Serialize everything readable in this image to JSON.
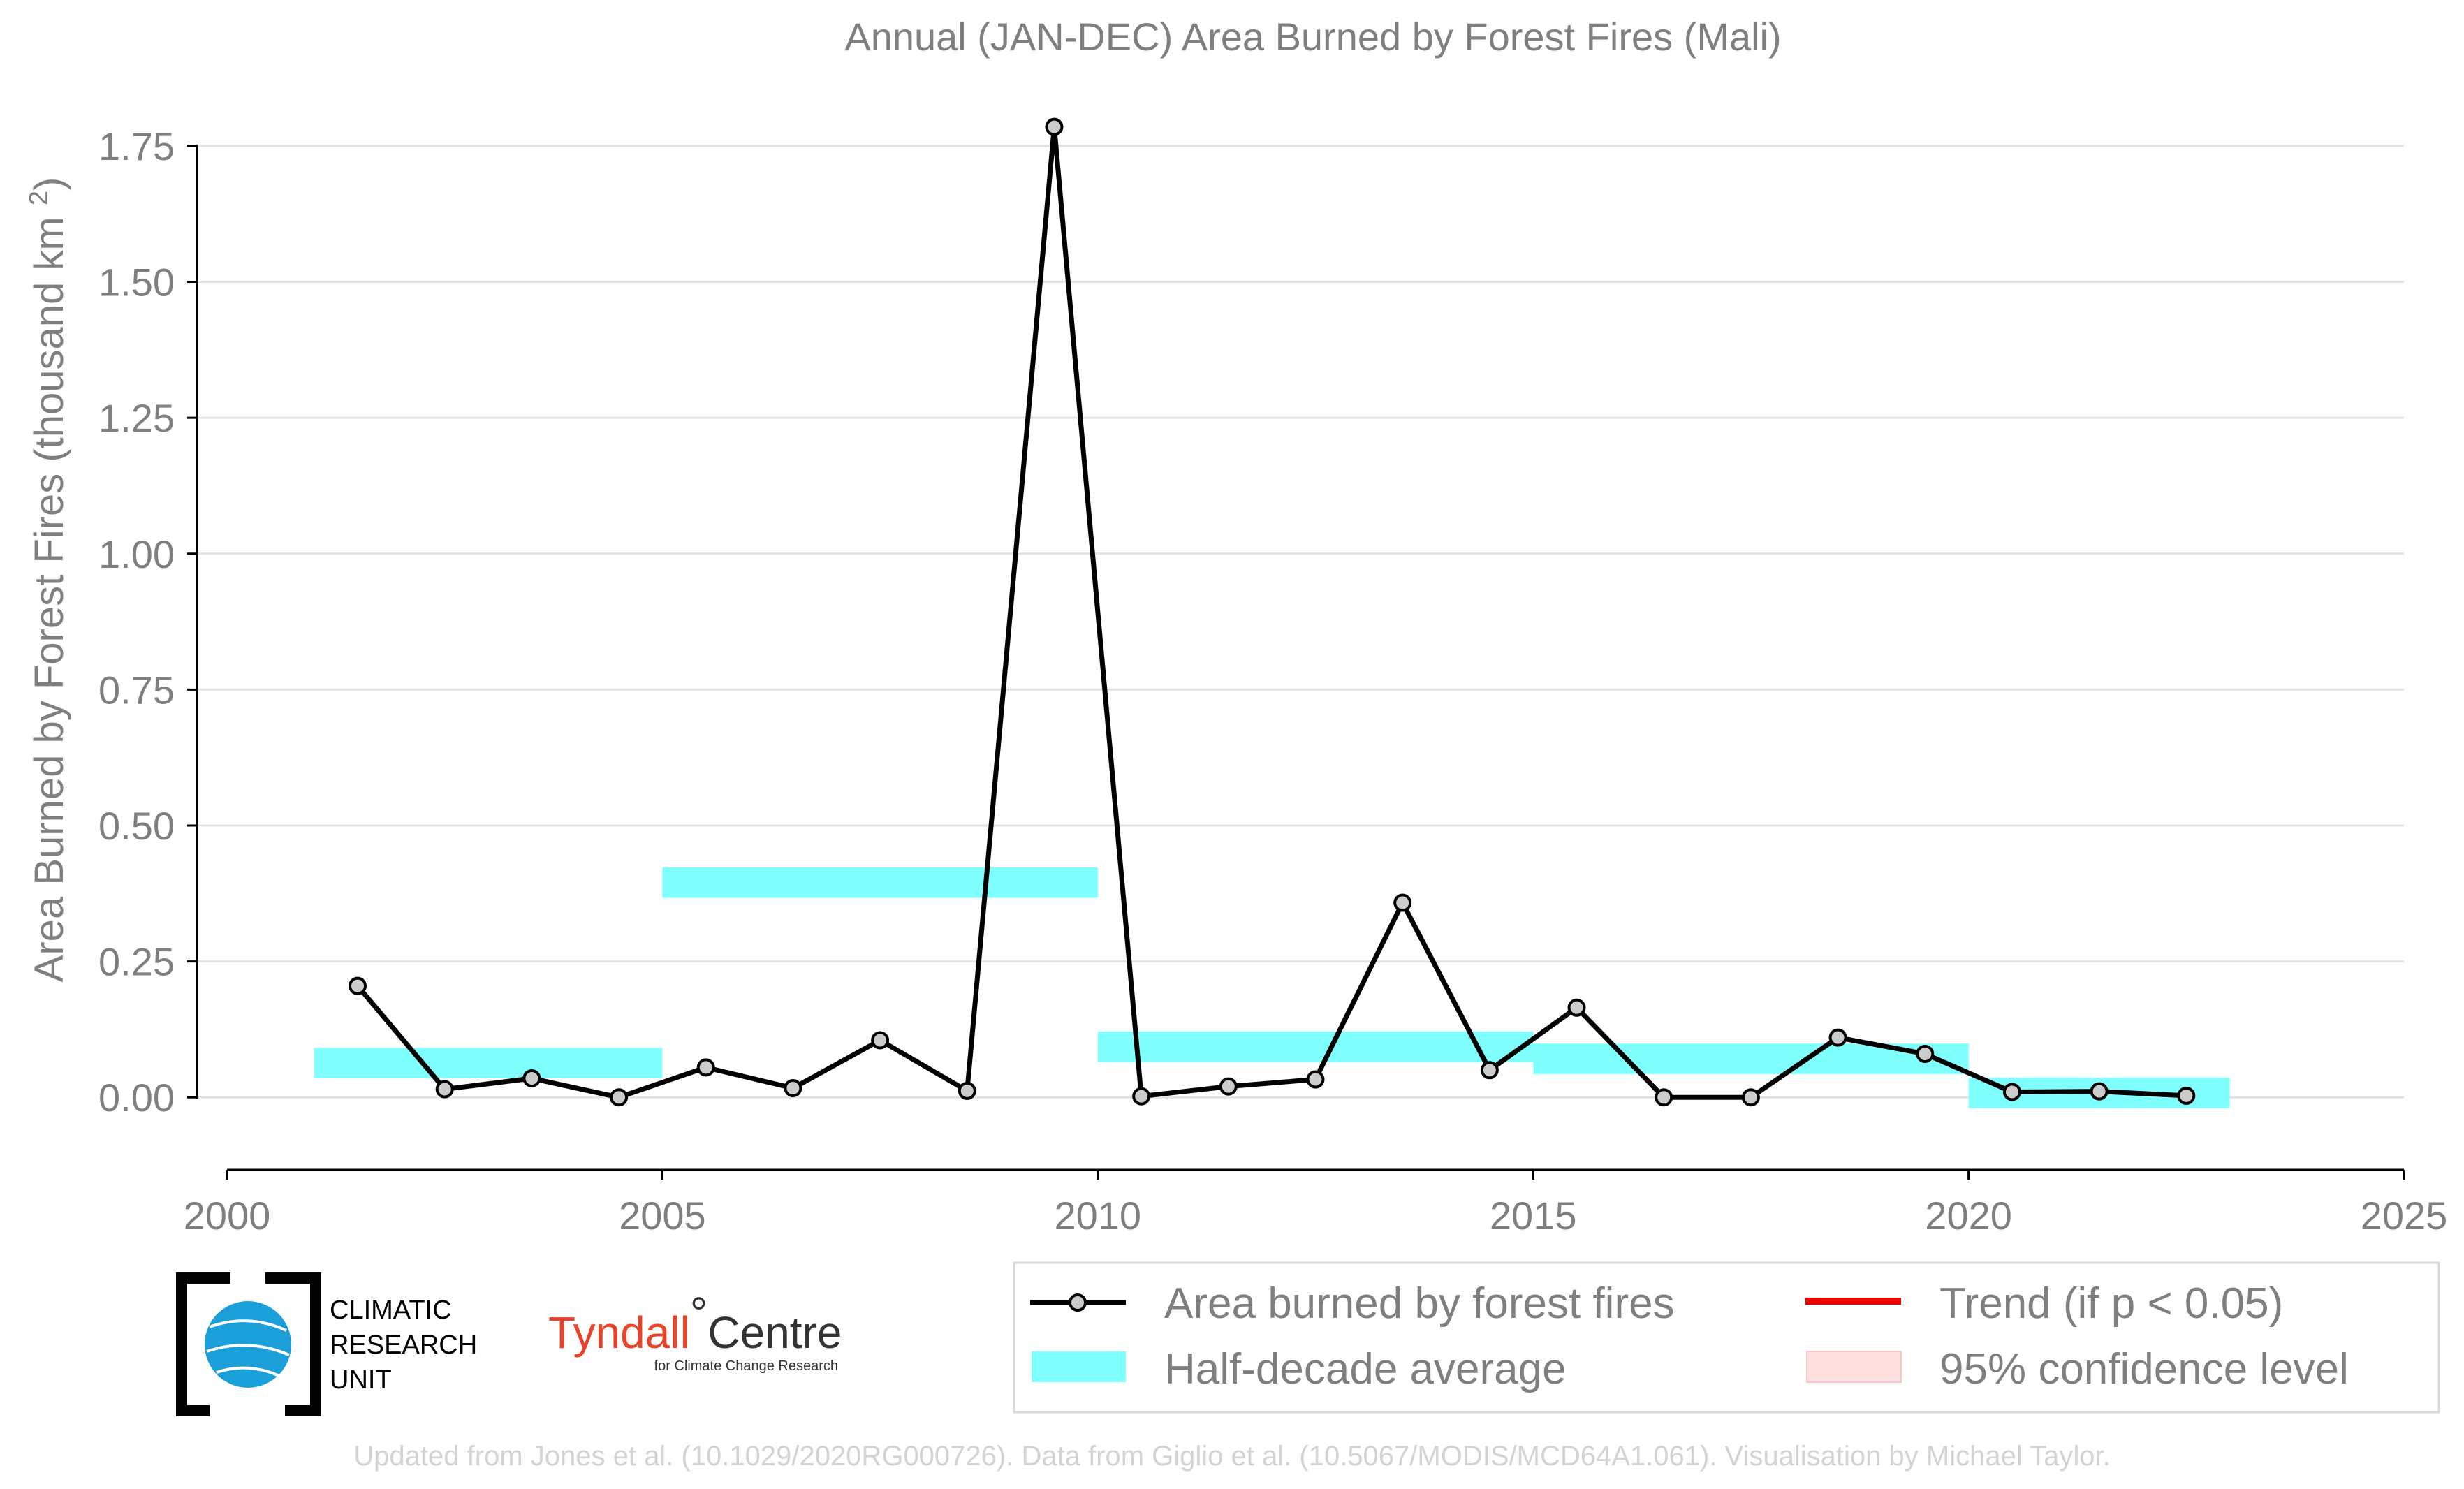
{
  "chart_data": {
    "type": "line",
    "title": "Annual (JAN-DEC) Area Burned by Forest Fires (Mali)",
    "ylabel": "Area Burned by Forest Fires (thousand km²)",
    "xlabel": "",
    "xlim": [
      2000,
      2025
    ],
    "ylim": [
      -0.15,
      1.8
    ],
    "x_ticks": [
      "2000",
      "2005",
      "2010",
      "2015",
      "2020",
      "2025"
    ],
    "y_ticks": [
      "0.00",
      "0.25",
      "0.50",
      "0.75",
      "1.00",
      "1.25",
      "1.50",
      "1.75"
    ],
    "grid": true,
    "series": [
      {
        "name": "Area burned by forest fires",
        "color": "#000000",
        "marker_color": "#cccccc",
        "x": [
          2001.5,
          2002.5,
          2003.5,
          2004.5,
          2005.5,
          2006.5,
          2007.5,
          2008.5,
          2009.5,
          2010.5,
          2011.5,
          2012.5,
          2013.5,
          2014.5,
          2015.5,
          2016.5,
          2017.5,
          2018.5,
          2019.5,
          2020.5,
          2021.5,
          2022.5
        ],
        "values": [
          0.205,
          0.015,
          0.035,
          0.0,
          0.055,
          0.017,
          0.105,
          0.012,
          1.785,
          0.002,
          0.02,
          0.033,
          0.358,
          0.05,
          0.165,
          0.0,
          0.0,
          0.11,
          0.08,
          0.01,
          0.011,
          0.003
        ]
      }
    ],
    "half_decade_averages": {
      "name": "Half-decade average",
      "color": "#80ffff",
      "segments": [
        {
          "x0": 2001,
          "x1": 2005,
          "value": 0.063
        },
        {
          "x0": 2005,
          "x1": 2010,
          "value": 0.395
        },
        {
          "x0": 2010,
          "x1": 2015,
          "value": 0.093
        },
        {
          "x0": 2015,
          "x1": 2020,
          "value": 0.071
        },
        {
          "x0": 2020,
          "x1": 2023,
          "value": 0.008
        }
      ]
    },
    "legend": {
      "placement": "bottom-right",
      "entries": [
        {
          "key": "line",
          "label": "Area burned by forest fires"
        },
        {
          "key": "trend",
          "label": "Trend (if p < 0.05)",
          "color": "#ee0000"
        },
        {
          "key": "band",
          "label": "Half-decade average"
        },
        {
          "key": "ci",
          "label": "95% confidence level",
          "color": "#ffe0e0"
        }
      ]
    }
  },
  "logos": {
    "cru_lines": [
      "CLIMATIC",
      "RESEARCH",
      "UNIT"
    ],
    "tyndall_name": "Tyndall",
    "tyndall_degree": "°",
    "tyndall_centre": "Centre",
    "tyndall_sub": "for Climate Change Research"
  },
  "footer": "Updated from Jones et al. (10.1029/2020RG000726). Data from Giglio et al. (10.5067/MODIS/MCD64A1.061). Visualisation by Michael Taylor."
}
